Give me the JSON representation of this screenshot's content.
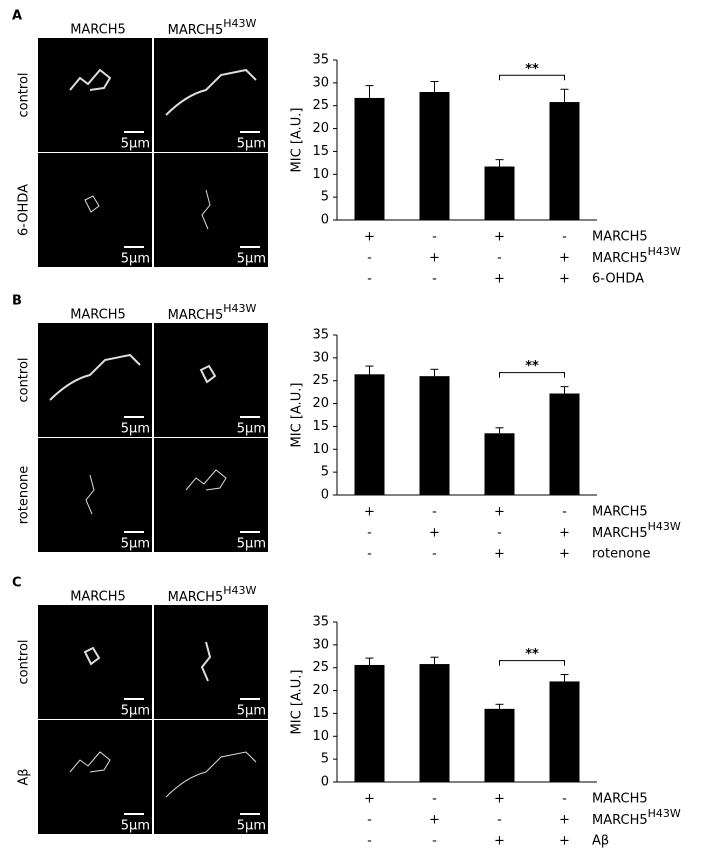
{
  "panels": [
    {
      "letter": "A",
      "col1": "MARCH5",
      "col2": "MARCH5",
      "col2_sup": "H43W",
      "row1": "control",
      "row2": "6-OHDA",
      "scale_bar": "5μm"
    },
    {
      "letter": "B",
      "col1": "MARCH5",
      "col2": "MARCH5",
      "col2_sup": "H43W",
      "row1": "control",
      "row2": "rotenone",
      "scale_bar": "5μm"
    },
    {
      "letter": "C",
      "col1": "MARCH5",
      "col2": "MARCH5",
      "col2_sup": "H43W",
      "row1": "control",
      "row2": "Aβ",
      "scale_bar": "5μm"
    }
  ],
  "chart_data": [
    {
      "type": "bar",
      "ylabel": "MIC [A.U.]",
      "values": [
        26.7,
        28,
        11.7,
        25.8
      ],
      "errors": [
        2.7,
        2.3,
        1.5,
        2.8
      ],
      "color": "#000000",
      "ylim": [
        0,
        35
      ],
      "yticks": [
        0,
        5,
        10,
        15,
        20,
        25,
        30,
        35
      ],
      "annotation": "**",
      "conditions": [
        {
          "name": "MARCH5",
          "signs": [
            "+",
            "-",
            "+",
            "-"
          ]
        },
        {
          "name": "MARCH5",
          "sup": "H43W",
          "signs": [
            "-",
            "+",
            "-",
            "+"
          ]
        },
        {
          "name": "6-OHDA",
          "signs": [
            "-",
            "-",
            "+",
            "+"
          ]
        }
      ]
    },
    {
      "type": "bar",
      "ylabel": "MIC [A.U.]",
      "values": [
        26.4,
        26,
        13.5,
        22.2
      ],
      "errors": [
        1.8,
        1.5,
        1.2,
        1.5
      ],
      "color": "#000000",
      "ylim": [
        0,
        35
      ],
      "yticks": [
        0,
        5,
        10,
        15,
        20,
        25,
        30,
        35
      ],
      "annotation": "**",
      "conditions": [
        {
          "name": "MARCH5",
          "signs": [
            "+",
            "-",
            "+",
            "-"
          ]
        },
        {
          "name": "MARCH5",
          "sup": "H43W",
          "signs": [
            "-",
            "+",
            "-",
            "+"
          ]
        },
        {
          "name": "rotenone",
          "signs": [
            "-",
            "-",
            "+",
            "+"
          ]
        }
      ]
    },
    {
      "type": "bar",
      "ylabel": "MIC [A.U.]",
      "values": [
        25.6,
        25.8,
        16,
        22
      ],
      "errors": [
        1.5,
        1.5,
        1,
        1.5
      ],
      "color": "#000000",
      "ylim": [
        0,
        35
      ],
      "yticks": [
        0,
        5,
        10,
        15,
        20,
        25,
        30,
        35
      ],
      "annotation": "**",
      "conditions": [
        {
          "name": "MARCH5",
          "signs": [
            "+",
            "-",
            "+",
            "-"
          ]
        },
        {
          "name": "MARCH5",
          "sup": "H43W",
          "signs": [
            "-",
            "+",
            "-",
            "+"
          ]
        },
        {
          "name": "Aβ",
          "signs": [
            "-",
            "-",
            "+",
            "+"
          ]
        }
      ]
    }
  ]
}
